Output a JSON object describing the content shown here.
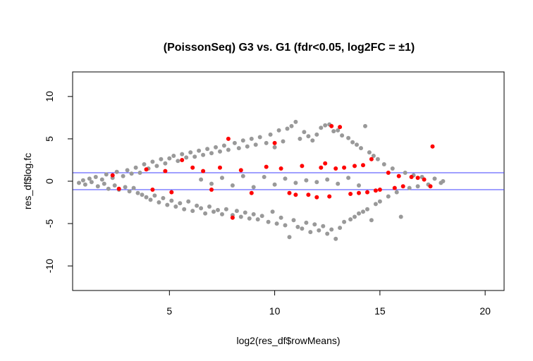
{
  "chart_data": {
    "type": "scatter",
    "title": "(PoissonSeq) G3 vs. G1 (fdr<0.05, log2FC = ±1)",
    "xlabel": "log2(res_df$rowMeans)",
    "ylabel": "res_df$log.fc",
    "xlim": [
      0.4,
      20.9
    ],
    "ylim": [
      -12.9,
      12.9
    ],
    "x_ticks": [
      5,
      10,
      15,
      20
    ],
    "y_ticks": [
      -10,
      -5,
      0,
      5,
      10
    ],
    "grid": false,
    "legend": "none",
    "reference_lines": [
      1,
      -1
    ],
    "colors": {
      "not_significant": "#999999",
      "significant": "#ff0000",
      "reference_line": "#4040ff"
    },
    "series": [
      {
        "significance": "not significant",
        "color": "#999999",
        "points": [
          [
            0.7,
            -0.2
          ],
          [
            0.9,
            0.1
          ],
          [
            1.0,
            -0.4
          ],
          [
            1.2,
            0.3
          ],
          [
            1.3,
            -0.1
          ],
          [
            1.5,
            0.5
          ],
          [
            1.6,
            -0.6
          ],
          [
            1.8,
            0.2
          ],
          [
            1.9,
            -0.3
          ],
          [
            2.0,
            0.8
          ],
          [
            2.1,
            -0.9
          ],
          [
            2.3,
            0.4
          ],
          [
            2.4,
            -0.5
          ],
          [
            2.5,
            1.1
          ],
          [
            2.6,
            -1.0
          ],
          [
            2.8,
            0.6
          ],
          [
            2.9,
            -0.7
          ],
          [
            3.0,
            1.3
          ],
          [
            3.1,
            -1.2
          ],
          [
            3.2,
            0.9
          ],
          [
            3.3,
            -0.8
          ],
          [
            3.4,
            1.6
          ],
          [
            3.5,
            -1.4
          ],
          [
            3.6,
            1.0
          ],
          [
            3.7,
            -1.6
          ],
          [
            3.8,
            2.0
          ],
          [
            3.9,
            -1.9
          ],
          [
            4.0,
            1.5
          ],
          [
            4.1,
            -2.2
          ],
          [
            4.2,
            2.3
          ],
          [
            4.3,
            -1.7
          ],
          [
            4.4,
            1.8
          ],
          [
            4.5,
            -2.5
          ],
          [
            4.6,
            2.6
          ],
          [
            4.7,
            -2.0
          ],
          [
            4.8,
            2.1
          ],
          [
            4.9,
            -2.8
          ],
          [
            5.0,
            2.7
          ],
          [
            5.1,
            -2.3
          ],
          [
            5.2,
            3.0
          ],
          [
            5.3,
            -3.0
          ],
          [
            5.4,
            2.4
          ],
          [
            5.5,
            -2.6
          ],
          [
            5.6,
            3.2
          ],
          [
            5.7,
            -3.3
          ],
          [
            5.8,
            2.8
          ],
          [
            5.9,
            -2.4
          ],
          [
            6.0,
            3.4
          ],
          [
            6.1,
            -3.5
          ],
          [
            6.2,
            2.9
          ],
          [
            6.3,
            -2.9
          ],
          [
            6.4,
            3.6
          ],
          [
            6.5,
            -3.2
          ],
          [
            6.6,
            3.1
          ],
          [
            6.7,
            -3.8
          ],
          [
            6.8,
            3.8
          ],
          [
            6.9,
            -3.0
          ],
          [
            7.0,
            3.3
          ],
          [
            7.1,
            -3.6
          ],
          [
            7.2,
            4.0
          ],
          [
            7.3,
            -3.4
          ],
          [
            7.4,
            3.5
          ],
          [
            7.5,
            -3.9
          ],
          [
            7.6,
            4.2
          ],
          [
            7.7,
            -3.3
          ],
          [
            7.8,
            3.7
          ],
          [
            8.0,
            -4.0
          ],
          [
            8.1,
            4.5
          ],
          [
            8.2,
            -3.5
          ],
          [
            8.3,
            3.9
          ],
          [
            8.4,
            -4.2
          ],
          [
            8.5,
            4.8
          ],
          [
            8.6,
            -3.7
          ],
          [
            8.7,
            4.1
          ],
          [
            8.8,
            -4.4
          ],
          [
            8.9,
            5.0
          ],
          [
            9.0,
            -3.9
          ],
          [
            9.1,
            4.3
          ],
          [
            9.2,
            -4.5
          ],
          [
            9.3,
            5.2
          ],
          [
            9.4,
            -4.1
          ],
          [
            9.6,
            4.5
          ],
          [
            9.7,
            -4.8
          ],
          [
            9.8,
            5.5
          ],
          [
            9.9,
            -3.6
          ],
          [
            10.0,
            4.0
          ],
          [
            10.1,
            -5.0
          ],
          [
            10.2,
            6.0
          ],
          [
            10.3,
            -4.3
          ],
          [
            10.4,
            4.7
          ],
          [
            10.5,
            -5.2
          ],
          [
            10.6,
            6.2
          ],
          [
            10.7,
            -6.6
          ],
          [
            10.8,
            6.5
          ],
          [
            10.9,
            -4.6
          ],
          [
            11.0,
            7.0
          ],
          [
            11.1,
            -5.4
          ],
          [
            11.2,
            5.0
          ],
          [
            11.3,
            -5.6
          ],
          [
            11.4,
            5.8
          ],
          [
            11.5,
            -4.9
          ],
          [
            11.6,
            5.3
          ],
          [
            11.7,
            -6.0
          ],
          [
            11.8,
            4.8
          ],
          [
            11.9,
            -5.1
          ],
          [
            12.0,
            5.5
          ],
          [
            12.1,
            -5.8
          ],
          [
            12.2,
            6.3
          ],
          [
            12.3,
            -5.3
          ],
          [
            12.4,
            6.6
          ],
          [
            12.5,
            -6.2
          ],
          [
            12.6,
            6.7
          ],
          [
            12.7,
            -5.7
          ],
          [
            12.8,
            5.9
          ],
          [
            12.9,
            -6.8
          ],
          [
            13.0,
            6.0
          ],
          [
            13.1,
            -5.5
          ],
          [
            13.2,
            5.4
          ],
          [
            13.3,
            -4.8
          ],
          [
            13.5,
            5.1
          ],
          [
            13.6,
            -4.5
          ],
          [
            13.7,
            4.6
          ],
          [
            13.8,
            -4.2
          ],
          [
            13.9,
            4.3
          ],
          [
            14.0,
            -3.8
          ],
          [
            14.1,
            3.9
          ],
          [
            14.2,
            -3.6
          ],
          [
            14.3,
            6.5
          ],
          [
            14.4,
            -3.3
          ],
          [
            14.5,
            3.4
          ],
          [
            14.6,
            -4.6
          ],
          [
            14.7,
            3.0
          ],
          [
            14.8,
            -2.7
          ],
          [
            14.9,
            2.6
          ],
          [
            15.0,
            -2.4
          ],
          [
            15.2,
            2.0
          ],
          [
            15.4,
            -1.8
          ],
          [
            15.6,
            1.5
          ],
          [
            15.8,
            -1.3
          ],
          [
            16.0,
            -4.2
          ],
          [
            16.2,
            1.0
          ],
          [
            16.4,
            -0.8
          ],
          [
            16.6,
            0.7
          ],
          [
            16.8,
            -0.6
          ],
          [
            17.0,
            0.5
          ],
          [
            17.3,
            -0.4
          ],
          [
            17.6,
            0.3
          ],
          [
            17.9,
            -0.2
          ],
          [
            18.0,
            0.0
          ],
          [
            6.5,
            0.2
          ],
          [
            7.0,
            -0.3
          ],
          [
            7.5,
            0.4
          ],
          [
            8.0,
            -0.5
          ],
          [
            8.5,
            0.6
          ],
          [
            9.0,
            -0.7
          ],
          [
            9.5,
            0.5
          ],
          [
            10.0,
            -0.4
          ],
          [
            10.5,
            0.3
          ],
          [
            11.0,
            -0.2
          ],
          [
            11.5,
            0.1
          ],
          [
            12.0,
            -0.1
          ],
          [
            12.5,
            0.2
          ],
          [
            13.0,
            -0.3
          ],
          [
            13.5,
            0.4
          ],
          [
            14.0,
            -0.5
          ]
        ]
      },
      {
        "significance": "significant",
        "color": "#ff0000",
        "points": [
          [
            2.3,
            0.7
          ],
          [
            2.6,
            -0.9
          ],
          [
            3.9,
            1.4
          ],
          [
            4.2,
            -1.0
          ],
          [
            4.8,
            1.2
          ],
          [
            5.1,
            -1.3
          ],
          [
            5.6,
            2.5
          ],
          [
            6.1,
            1.6
          ],
          [
            6.6,
            1.2
          ],
          [
            7.0,
            -1.0
          ],
          [
            7.4,
            1.6
          ],
          [
            7.8,
            5.0
          ],
          [
            8.0,
            -4.3
          ],
          [
            8.4,
            1.3
          ],
          [
            8.9,
            -1.4
          ],
          [
            9.6,
            1.7
          ],
          [
            10.0,
            4.5
          ],
          [
            10.3,
            1.5
          ],
          [
            10.7,
            -1.4
          ],
          [
            11.0,
            -1.6
          ],
          [
            11.3,
            1.8
          ],
          [
            11.6,
            -1.6
          ],
          [
            12.0,
            -1.9
          ],
          [
            12.2,
            1.6
          ],
          [
            12.4,
            2.1
          ],
          [
            12.6,
            -1.8
          ],
          [
            12.7,
            6.5
          ],
          [
            12.9,
            1.5
          ],
          [
            13.1,
            6.4
          ],
          [
            13.3,
            1.6
          ],
          [
            13.6,
            -1.5
          ],
          [
            13.8,
            1.8
          ],
          [
            14.0,
            -1.4
          ],
          [
            14.2,
            1.9
          ],
          [
            14.4,
            -1.3
          ],
          [
            14.6,
            2.6
          ],
          [
            14.8,
            -1.1
          ],
          [
            15.0,
            -1.0
          ],
          [
            15.4,
            1.0
          ],
          [
            15.7,
            -0.8
          ],
          [
            15.9,
            0.6
          ],
          [
            16.1,
            -0.6
          ],
          [
            16.5,
            0.5
          ],
          [
            16.8,
            0.4
          ],
          [
            17.1,
            0.2
          ],
          [
            17.5,
            4.1
          ],
          [
            17.4,
            -0.6
          ]
        ]
      }
    ]
  }
}
